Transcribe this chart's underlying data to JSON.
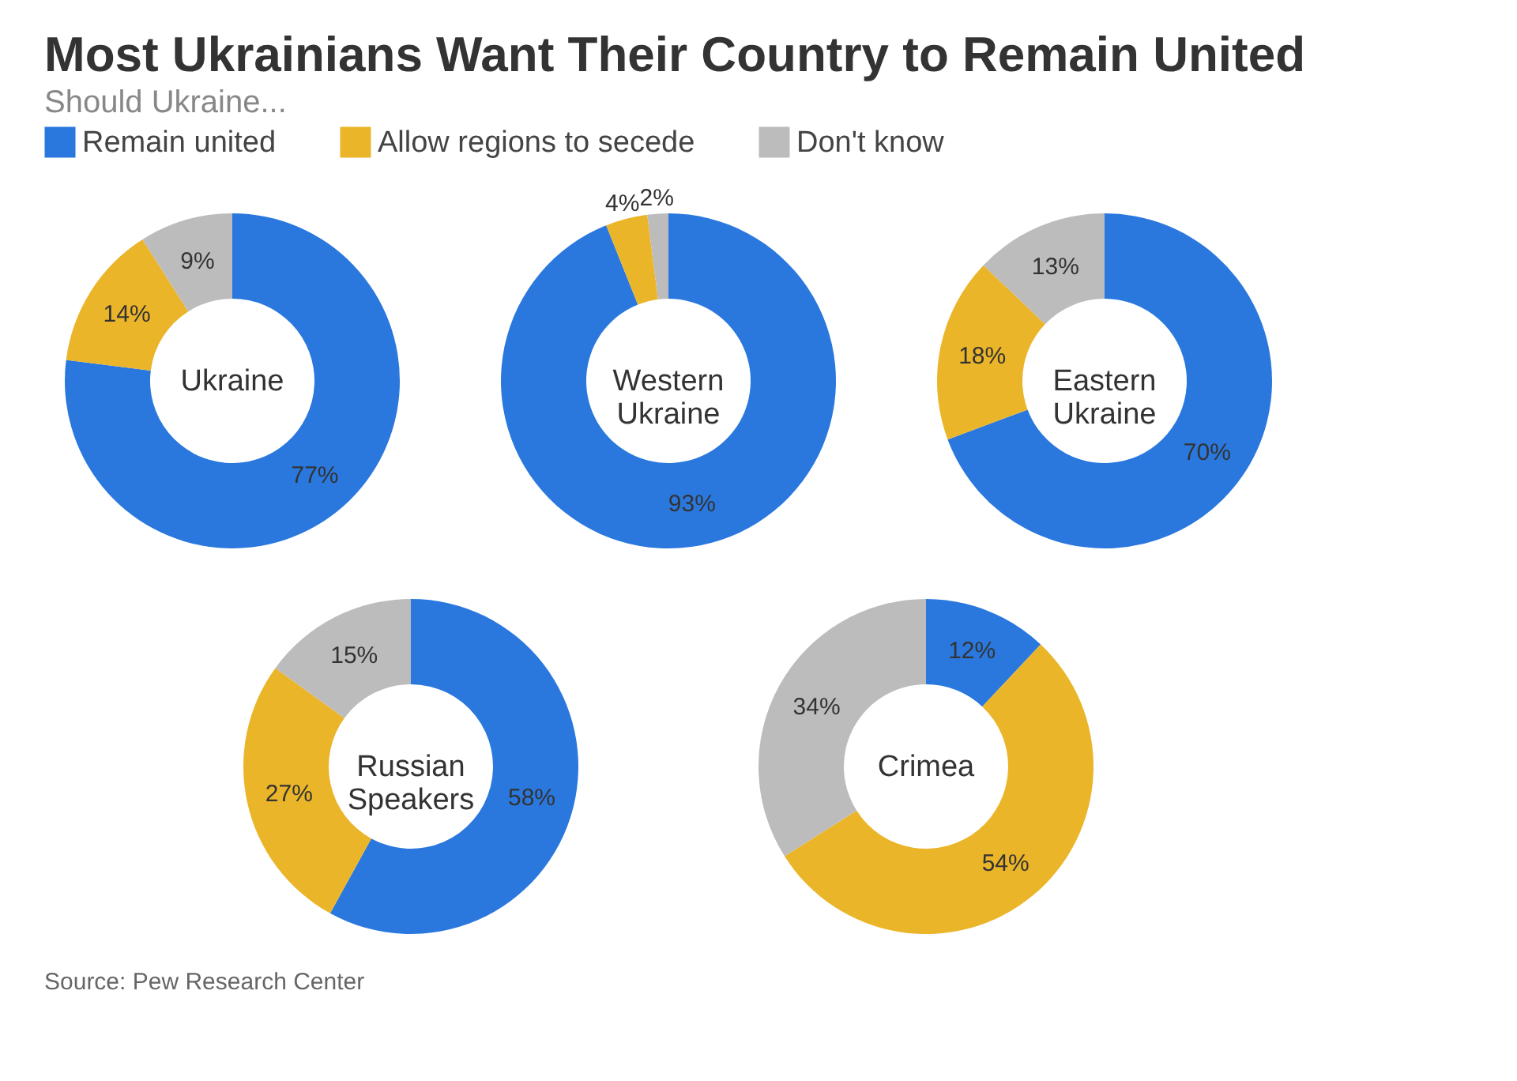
{
  "chart_data": [
    {
      "type": "donut",
      "title": "Most Ukrainians Want Their Country to Remain United",
      "subtitle": "Should Ukraine...",
      "xlabel": "Ukraine",
      "categories": [
        "Remain united",
        "Allow regions to secede",
        "Don't know"
      ],
      "values": [
        77,
        14,
        9
      ],
      "value_labels": [
        "77%",
        "14%",
        "9%"
      ],
      "colors": [
        "#2a78de",
        "#ebb52a",
        "#bcbcbc"
      ],
      "legend": "top",
      "annotations": [
        "Source: Pew Research Center"
      ]
    },
    {
      "type": "donut",
      "xlabel": "Western Ukraine",
      "categories": [
        null,
        null,
        null
      ],
      "values": [
        93,
        4,
        2
      ],
      "value_labels": [
        "93%",
        "4%",
        "2%"
      ],
      "colors": [
        "#2a78de",
        "#ebb52a",
        "#bcbcbc"
      ]
    },
    {
      "type": "donut",
      "xlabel": "Eastern Ukraine",
      "categories": [
        null,
        null,
        null
      ],
      "values": [
        70,
        18,
        13
      ],
      "value_labels": [
        "70%",
        "18%",
        "13%"
      ],
      "colors": [
        "#2a78de",
        "#ebb52a",
        "#bcbcbc"
      ]
    },
    {
      "type": "donut",
      "xlabel": "Russian Speakers",
      "categories": [
        null,
        null,
        null
      ],
      "values": [
        58,
        27,
        15
      ],
      "value_labels": [
        "58%",
        "27%",
        "15%"
      ],
      "colors": [
        "#2a78de",
        "#ebb52a",
        "#bcbcbc"
      ]
    },
    {
      "type": "donut",
      "xlabel": "Crimea",
      "categories": [
        null,
        null,
        null
      ],
      "values": [
        12,
        54,
        34
      ],
      "value_labels": [
        "12%",
        "54%",
        "34%"
      ],
      "colors": [
        "#2a78de",
        "#ebb52a",
        "#bcbcbc"
      ]
    }
  ]
}
